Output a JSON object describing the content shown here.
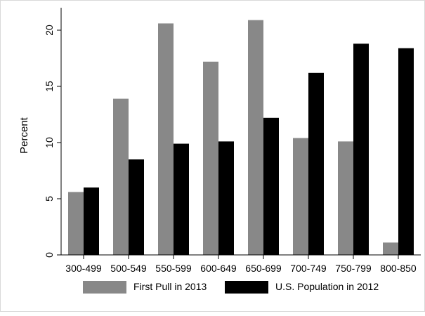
{
  "chart_data": {
    "type": "bar",
    "title": "",
    "xlabel": "",
    "ylabel": "Percent",
    "ylim": [
      0,
      22
    ],
    "yticks": [
      0,
      5,
      10,
      15,
      20
    ],
    "grid": false,
    "legend_position": "bottom",
    "categories": [
      "300-499",
      "500-549",
      "550-599",
      "600-649",
      "650-699",
      "700-749",
      "750-799",
      "800-850"
    ],
    "series": [
      {
        "name": "First Pull in 2013",
        "color": "#888888",
        "values": [
          5.6,
          13.9,
          20.6,
          17.2,
          20.9,
          10.4,
          10.1,
          1.1
        ]
      },
      {
        "name": "U.S. Population in 2012",
        "color": "#000000",
        "values": [
          6.0,
          8.5,
          9.9,
          10.1,
          12.2,
          16.2,
          18.8,
          18.4
        ]
      }
    ]
  }
}
